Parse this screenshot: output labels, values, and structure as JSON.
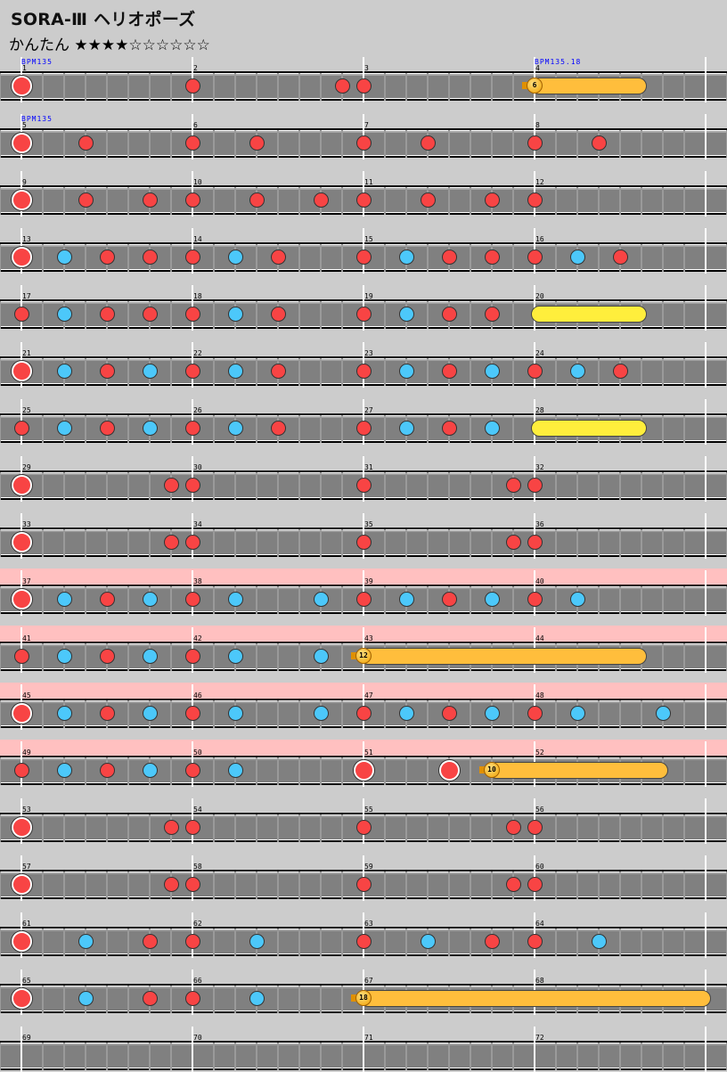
{
  "header": {
    "title": "SORA-Ⅲ ヘリオポーズ",
    "difficulty": "かんたん",
    "stars": "★★★★☆☆☆☆☆☆",
    "star_rating": 4,
    "star_max": 10
  },
  "colors": {
    "don": "#f84444",
    "ka": "#4cc8fa",
    "balloon": "#ffbe3c",
    "roll": "#ffee3c",
    "gogo": "#ffc0c0",
    "lane": "#808080",
    "background": "#cccccc"
  },
  "chart": {
    "measures_per_row": 4,
    "divisions_per_measure": 8,
    "total_measures": 72,
    "gogo_measures": [
      37,
      52
    ],
    "bpm_changes": [
      {
        "measure": 1,
        "label": "BPM135"
      },
      {
        "measure": 4,
        "label": "BPM135.18"
      },
      {
        "measure": 5,
        "label": "BPM135"
      }
    ],
    "notes": [
      [
        1,
        0,
        "DON"
      ],
      [
        2,
        0,
        "don"
      ],
      [
        2,
        7,
        "don"
      ],
      [
        3,
        0,
        "don"
      ],
      [
        5,
        0,
        "DON"
      ],
      [
        5,
        3,
        "don"
      ],
      [
        6,
        0,
        "don"
      ],
      [
        6,
        3,
        "don"
      ],
      [
        7,
        0,
        "don"
      ],
      [
        7,
        3,
        "don"
      ],
      [
        8,
        0,
        "don"
      ],
      [
        8,
        3,
        "don"
      ],
      [
        9,
        0,
        "DON"
      ],
      [
        9,
        3,
        "don"
      ],
      [
        9,
        6,
        "don"
      ],
      [
        10,
        0,
        "don"
      ],
      [
        10,
        3,
        "don"
      ],
      [
        10,
        6,
        "don"
      ],
      [
        11,
        0,
        "don"
      ],
      [
        11,
        3,
        "don"
      ],
      [
        11,
        6,
        "don"
      ],
      [
        12,
        0,
        "don"
      ],
      [
        13,
        0,
        "DON"
      ],
      [
        13,
        2,
        "ka"
      ],
      [
        13,
        4,
        "don"
      ],
      [
        13,
        6,
        "don"
      ],
      [
        14,
        0,
        "don"
      ],
      [
        14,
        2,
        "ka"
      ],
      [
        14,
        4,
        "don"
      ],
      [
        15,
        0,
        "don"
      ],
      [
        15,
        2,
        "ka"
      ],
      [
        15,
        4,
        "don"
      ],
      [
        15,
        6,
        "don"
      ],
      [
        16,
        0,
        "don"
      ],
      [
        16,
        2,
        "ka"
      ],
      [
        16,
        4,
        "don"
      ],
      [
        17,
        0,
        "don"
      ],
      [
        17,
        2,
        "ka"
      ],
      [
        17,
        4,
        "don"
      ],
      [
        17,
        6,
        "don"
      ],
      [
        18,
        0,
        "don"
      ],
      [
        18,
        2,
        "ka"
      ],
      [
        18,
        4,
        "don"
      ],
      [
        19,
        0,
        "don"
      ],
      [
        19,
        2,
        "ka"
      ],
      [
        19,
        4,
        "don"
      ],
      [
        19,
        6,
        "don"
      ],
      [
        21,
        0,
        "DON"
      ],
      [
        21,
        2,
        "ka"
      ],
      [
        21,
        4,
        "don"
      ],
      [
        21,
        6,
        "ka"
      ],
      [
        22,
        0,
        "don"
      ],
      [
        22,
        2,
        "ka"
      ],
      [
        22,
        4,
        "don"
      ],
      [
        23,
        0,
        "don"
      ],
      [
        23,
        2,
        "ka"
      ],
      [
        23,
        4,
        "don"
      ],
      [
        23,
        6,
        "ka"
      ],
      [
        24,
        0,
        "don"
      ],
      [
        24,
        2,
        "ka"
      ],
      [
        24,
        4,
        "don"
      ],
      [
        25,
        0,
        "don"
      ],
      [
        25,
        2,
        "ka"
      ],
      [
        25,
        4,
        "don"
      ],
      [
        25,
        6,
        "ka"
      ],
      [
        26,
        0,
        "don"
      ],
      [
        26,
        2,
        "ka"
      ],
      [
        26,
        4,
        "don"
      ],
      [
        27,
        0,
        "don"
      ],
      [
        27,
        2,
        "ka"
      ],
      [
        27,
        4,
        "don"
      ],
      [
        27,
        6,
        "ka"
      ],
      [
        29,
        0,
        "DON"
      ],
      [
        29,
        7,
        "don"
      ],
      [
        30,
        0,
        "don"
      ],
      [
        31,
        0,
        "don"
      ],
      [
        31,
        7,
        "don"
      ],
      [
        32,
        0,
        "don"
      ],
      [
        33,
        0,
        "DON"
      ],
      [
        33,
        7,
        "don"
      ],
      [
        34,
        0,
        "don"
      ],
      [
        35,
        0,
        "don"
      ],
      [
        35,
        7,
        "don"
      ],
      [
        36,
        0,
        "don"
      ],
      [
        37,
        0,
        "DON"
      ],
      [
        37,
        2,
        "ka"
      ],
      [
        37,
        4,
        "don"
      ],
      [
        37,
        6,
        "ka"
      ],
      [
        38,
        0,
        "don"
      ],
      [
        38,
        2,
        "ka"
      ],
      [
        38,
        6,
        "ka"
      ],
      [
        39,
        0,
        "don"
      ],
      [
        39,
        2,
        "ka"
      ],
      [
        39,
        4,
        "don"
      ],
      [
        39,
        6,
        "ka"
      ],
      [
        40,
        0,
        "don"
      ],
      [
        40,
        2,
        "ka"
      ],
      [
        41,
        0,
        "don"
      ],
      [
        41,
        2,
        "ka"
      ],
      [
        41,
        4,
        "don"
      ],
      [
        41,
        6,
        "ka"
      ],
      [
        42,
        0,
        "don"
      ],
      [
        42,
        2,
        "ka"
      ],
      [
        42,
        6,
        "ka"
      ],
      [
        45,
        0,
        "DON"
      ],
      [
        45,
        2,
        "ka"
      ],
      [
        45,
        4,
        "don"
      ],
      [
        45,
        6,
        "ka"
      ],
      [
        46,
        0,
        "don"
      ],
      [
        46,
        2,
        "ka"
      ],
      [
        46,
        6,
        "ka"
      ],
      [
        47,
        0,
        "don"
      ],
      [
        47,
        2,
        "ka"
      ],
      [
        47,
        4,
        "don"
      ],
      [
        47,
        6,
        "ka"
      ],
      [
        48,
        0,
        "don"
      ],
      [
        48,
        2,
        "ka"
      ],
      [
        48,
        6,
        "ka"
      ],
      [
        49,
        0,
        "don"
      ],
      [
        49,
        2,
        "ka"
      ],
      [
        49,
        4,
        "don"
      ],
      [
        49,
        6,
        "ka"
      ],
      [
        50,
        0,
        "don"
      ],
      [
        50,
        2,
        "ka"
      ],
      [
        51,
        0,
        "DON"
      ],
      [
        51,
        4,
        "DON"
      ],
      [
        53,
        0,
        "DON"
      ],
      [
        53,
        7,
        "don"
      ],
      [
        54,
        0,
        "don"
      ],
      [
        55,
        0,
        "don"
      ],
      [
        55,
        7,
        "don"
      ],
      [
        56,
        0,
        "don"
      ],
      [
        57,
        0,
        "DON"
      ],
      [
        57,
        7,
        "don"
      ],
      [
        58,
        0,
        "don"
      ],
      [
        59,
        0,
        "don"
      ],
      [
        59,
        7,
        "don"
      ],
      [
        60,
        0,
        "don"
      ],
      [
        61,
        0,
        "DON"
      ],
      [
        61,
        3,
        "ka"
      ],
      [
        61,
        6,
        "don"
      ],
      [
        62,
        0,
        "don"
      ],
      [
        62,
        3,
        "ka"
      ],
      [
        63,
        0,
        "don"
      ],
      [
        63,
        3,
        "ka"
      ],
      [
        63,
        6,
        "don"
      ],
      [
        64,
        0,
        "don"
      ],
      [
        64,
        3,
        "ka"
      ],
      [
        65,
        0,
        "DON"
      ],
      [
        65,
        3,
        "ka"
      ],
      [
        65,
        6,
        "don"
      ],
      [
        66,
        0,
        "don"
      ],
      [
        66,
        3,
        "ka"
      ]
    ],
    "rolls": [
      {
        "measure": 4,
        "division": 0,
        "length": 5,
        "kind": "balloon",
        "count": "6"
      },
      {
        "measure": 20,
        "division": 0,
        "length": 5,
        "kind": "roll"
      },
      {
        "measure": 28,
        "division": 0,
        "length": 5,
        "kind": "roll"
      },
      {
        "measure": 43,
        "division": 0,
        "length": 13,
        "kind": "balloon",
        "count": "12"
      },
      {
        "measure": 51,
        "division": 6,
        "length": 8,
        "kind": "balloon",
        "count": "10"
      },
      {
        "measure": 67,
        "division": 0,
        "length": 16,
        "kind": "balloon",
        "count": "18"
      }
    ]
  }
}
